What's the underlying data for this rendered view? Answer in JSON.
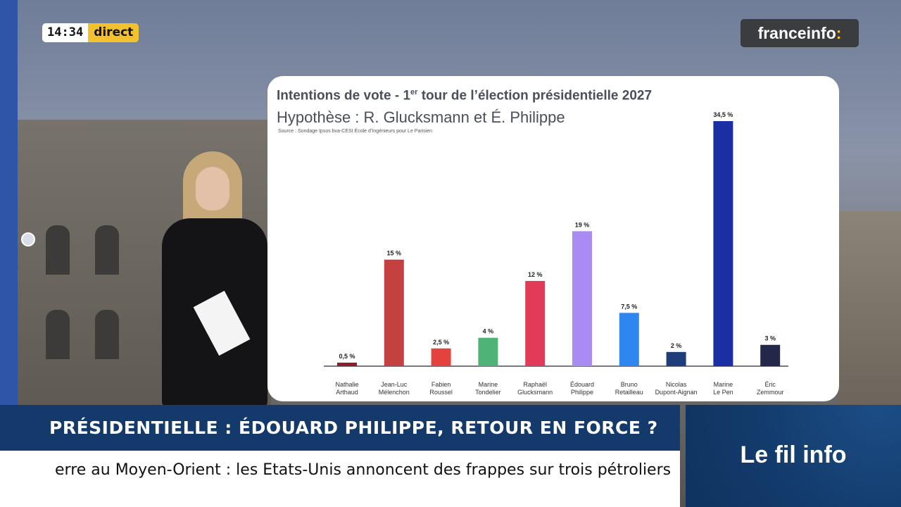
{
  "clock": {
    "time": "14:34",
    "live_label": "direct"
  },
  "logo": {
    "text": "franceinfo",
    "suffix": ":"
  },
  "chart_data": {
    "type": "bar",
    "title_main": "Intentions de vote - 1",
    "title_sup": "er",
    "title_rest": " tour de l’élection présidentielle 2027",
    "subtitle": "Hypothèse : R. Glucksmann et É. Philippe",
    "source": "Source : Sondage Ipsos bva-CESI École d’Ingénieurs pour Le Parisien",
    "categories": [
      [
        "Nathalie",
        "Arthaud"
      ],
      [
        "Jean-Luc",
        "Mélenchon"
      ],
      [
        "Fabien",
        "Roussel"
      ],
      [
        "Marine",
        "Tondelier"
      ],
      [
        "Raphaël",
        "Glucksmann"
      ],
      [
        "Édouard",
        "Philippe"
      ],
      [
        "Bruno",
        "Retailleau"
      ],
      [
        "Nicolas",
        "Dupont-Aignan"
      ],
      [
        "Marine",
        "Le Pen"
      ],
      [
        "Éric",
        "Zemmour"
      ]
    ],
    "values": [
      0.5,
      15,
      2.5,
      4,
      12,
      19,
      7.5,
      2,
      34.5,
      3
    ],
    "value_labels": [
      "0,5 %",
      "15 %",
      "2,5 %",
      "4 %",
      "12 %",
      "19 %",
      "7,5 %",
      "2 %",
      "34,5 %",
      "3 %"
    ],
    "colors": [
      "#8a1f2a",
      "#c4413f",
      "#e4423c",
      "#4fb377",
      "#e23b5a",
      "#a98bf3",
      "#2f86f0",
      "#1f3d7a",
      "#1b2ea3",
      "#23284a"
    ],
    "ylim": [
      0,
      34.5
    ],
    "grid": false
  },
  "headline": "PRÉSIDENTIELLE : ÉDOUARD PHILIPPE, RETOUR EN FORCE ?",
  "ticker": "erre au Moyen-Orient : les Etats-Unis annoncent des frappes sur trois pétroliers",
  "fil_info": "Le fil info"
}
